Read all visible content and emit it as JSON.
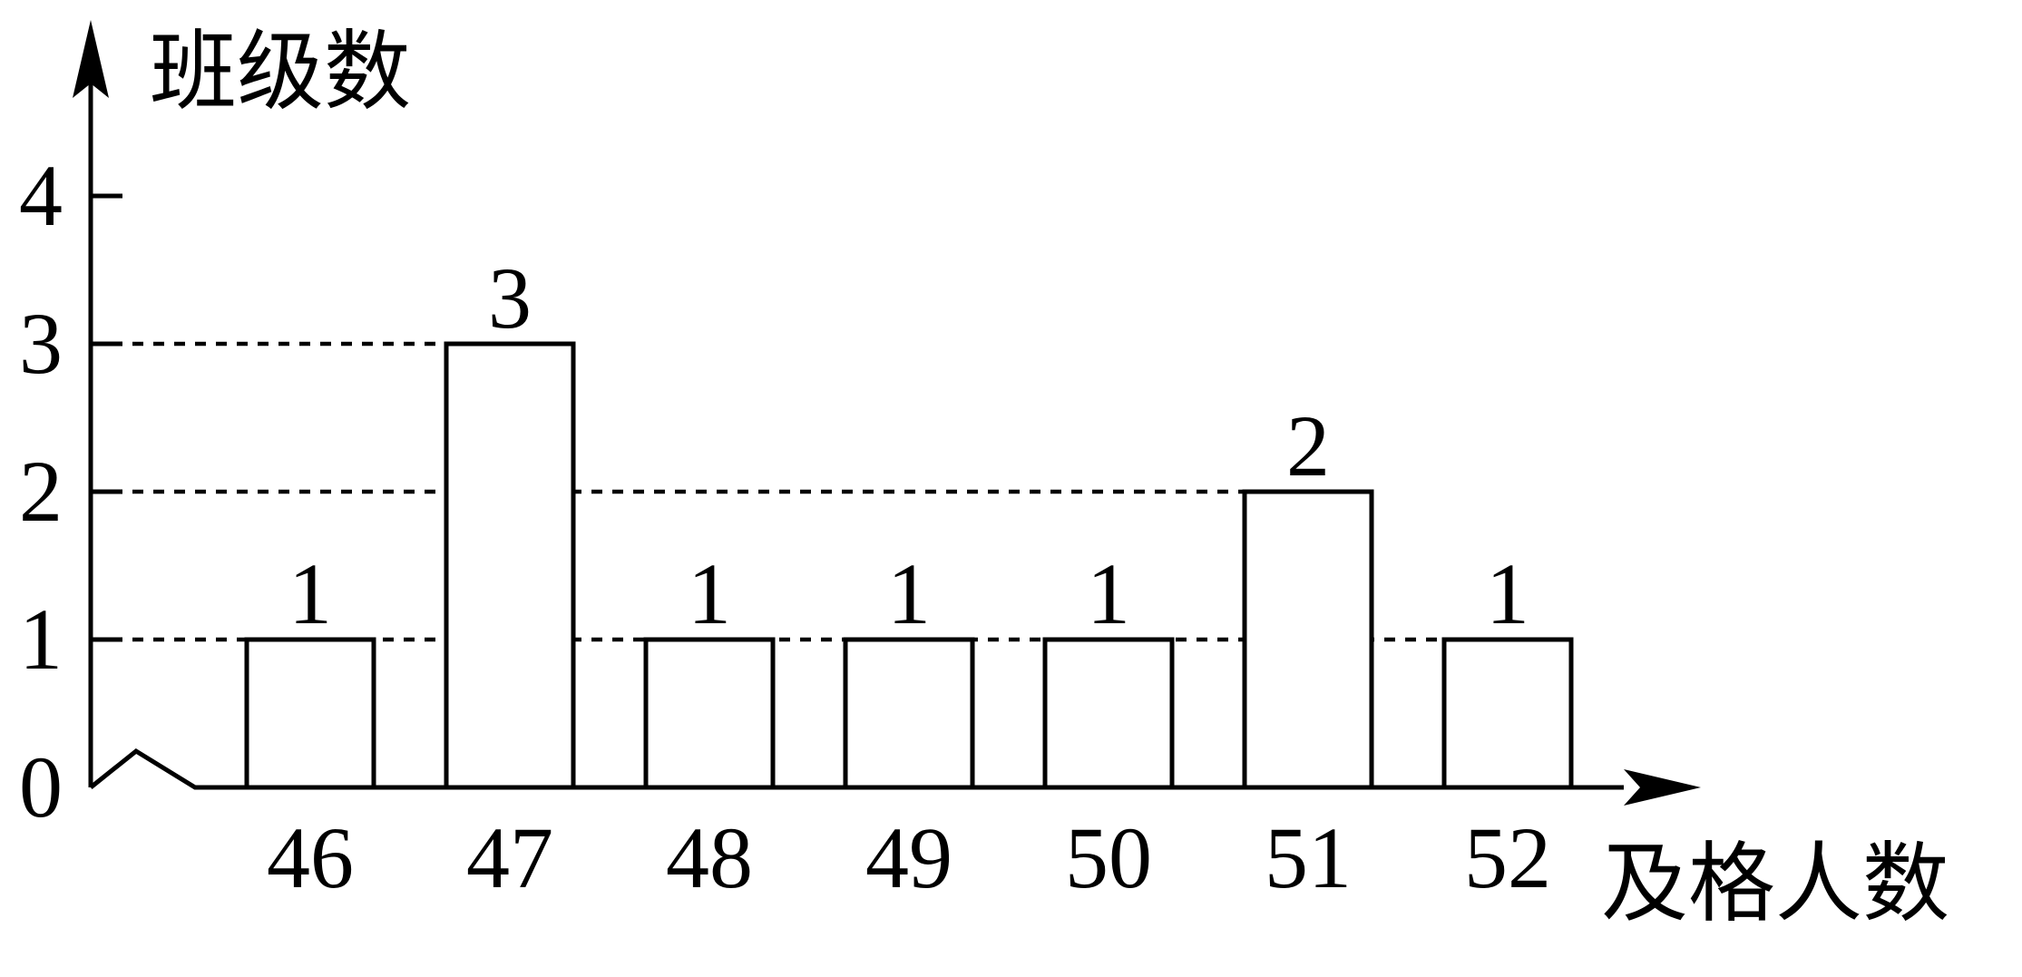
{
  "chart_data": {
    "type": "bar",
    "title": "",
    "xlabel": "及格人数",
    "ylabel": "班级数",
    "categories": [
      "46",
      "47",
      "48",
      "49",
      "50",
      "51",
      "52"
    ],
    "values": [
      1,
      3,
      1,
      1,
      1,
      2,
      1
    ],
    "data_labels": [
      "1",
      "3",
      "1",
      "1",
      "1",
      "2",
      "1"
    ],
    "y_ticks": [
      "0",
      "1",
      "2",
      "3",
      "4"
    ],
    "ylim": [
      0,
      4
    ],
    "x_axis_break": true,
    "reference_lines": [
      1,
      2,
      3
    ],
    "grid": false,
    "legend": "none"
  }
}
